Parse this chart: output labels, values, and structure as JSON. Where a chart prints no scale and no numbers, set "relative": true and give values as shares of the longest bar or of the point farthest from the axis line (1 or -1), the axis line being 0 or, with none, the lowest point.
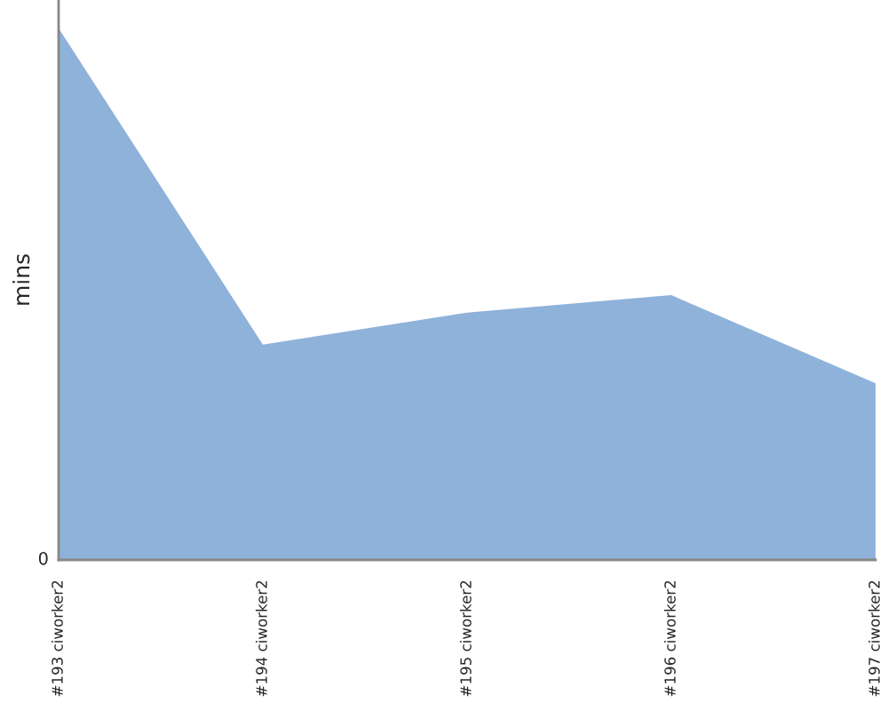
{
  "chart_data": {
    "type": "area",
    "relative": true,
    "ylabel": "mins",
    "categories": [
      "#193 ciworker2",
      "#194 ciworker2",
      "#195 ciworker2",
      "#196 ciworker2",
      "#197 ciworker2"
    ],
    "series": [
      {
        "color": "#8fb2da",
        "values": [
          1.0,
          0.405,
          0.465,
          0.498,
          0.332
        ]
      }
    ],
    "annotations": [
      "0"
    ],
    "grid": false,
    "legend": false
  }
}
